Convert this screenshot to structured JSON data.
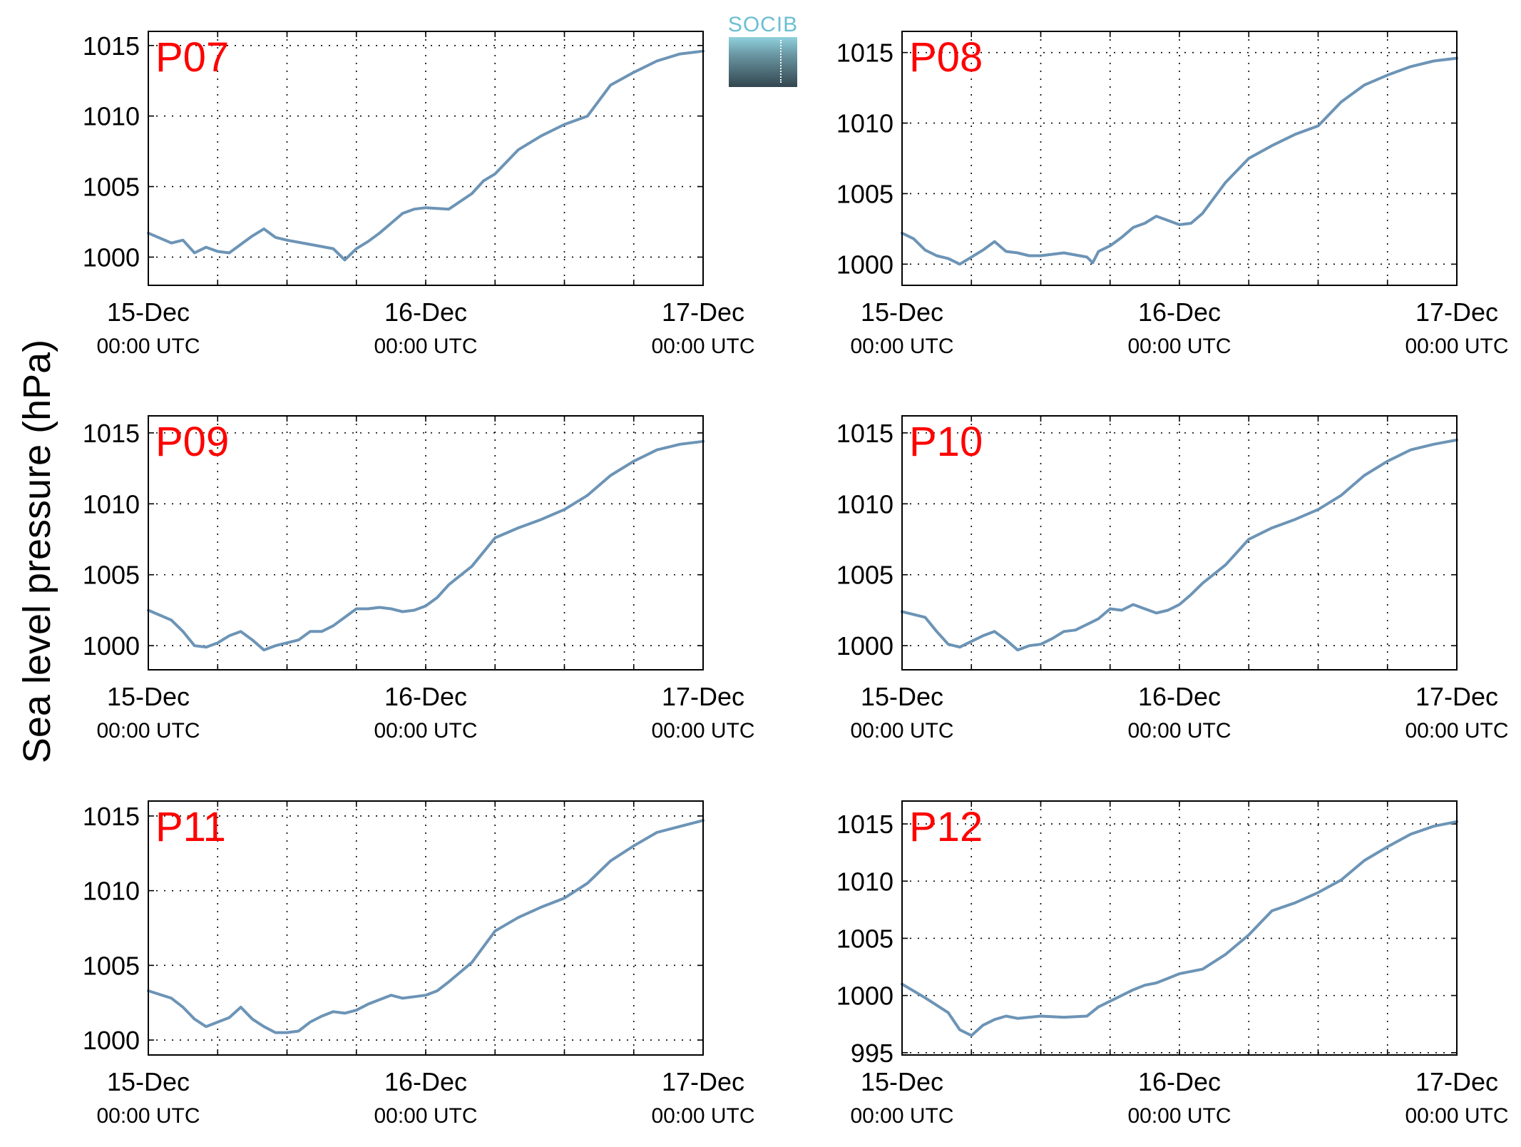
{
  "figure": {
    "ylabel": "Sea level pressure (hPa)",
    "logo_text": "SOCIB"
  },
  "colors": {
    "series": "#6c94b6",
    "station_label": "#ff0000",
    "axis": "#000000"
  },
  "chart_data": [
    {
      "type": "line",
      "title": "P07",
      "x_ticks": [
        {
          "date": "15-Dec",
          "time": "00:00 UTC"
        },
        {
          "date": "16-Dec",
          "time": "00:00 UTC"
        },
        {
          "date": "17-Dec",
          "time": "00:00 UTC"
        }
      ],
      "xlim": [
        "2014-12-15 00:00",
        "2014-12-17 00:00"
      ],
      "ylim": [
        998,
        1016
      ],
      "yticks": [
        1000,
        1005,
        1010,
        1015
      ],
      "grid": true,
      "x_unit": "hours since 15-Dec 00:00 UTC",
      "x": [
        0,
        2,
        3,
        4,
        5,
        6,
        7,
        8,
        9,
        10,
        11,
        12,
        14,
        16,
        17,
        18,
        19,
        20,
        21,
        22,
        23,
        24,
        26,
        28,
        29,
        30,
        32,
        34,
        36,
        38,
        40,
        42,
        44,
        46,
        48
      ],
      "values": [
        1001.7,
        1001.0,
        1001.2,
        1000.3,
        1000.7,
        1000.4,
        1000.3,
        1000.9,
        1001.5,
        1002.0,
        1001.4,
        1001.2,
        1000.9,
        1000.6,
        999.8,
        1000.6,
        1001.1,
        1001.7,
        1002.4,
        1003.1,
        1003.4,
        1003.5,
        1003.4,
        1004.5,
        1005.4,
        1005.9,
        1007.6,
        1008.6,
        1009.4,
        1010.0,
        1012.2,
        1013.1,
        1013.9,
        1014.4,
        1014.6
      ]
    },
    {
      "type": "line",
      "title": "P08",
      "x_ticks": [
        {
          "date": "15-Dec",
          "time": "00:00 UTC"
        },
        {
          "date": "16-Dec",
          "time": "00:00 UTC"
        },
        {
          "date": "17-Dec",
          "time": "00:00 UTC"
        }
      ],
      "xlim": [
        "2014-12-15 00:00",
        "2014-12-17 00:00"
      ],
      "ylim": [
        998.5,
        1016.5
      ],
      "yticks": [
        1000,
        1005,
        1010,
        1015
      ],
      "grid": true,
      "x_unit": "hours since 15-Dec 00:00 UTC",
      "x": [
        0,
        1,
        2,
        3,
        4,
        5,
        6,
        7,
        8,
        9,
        10,
        11,
        12,
        14,
        16,
        16.5,
        17,
        18,
        19,
        20,
        21,
        22,
        23,
        24,
        25,
        26,
        28,
        30,
        32,
        34,
        36,
        38,
        40,
        42,
        44,
        46,
        48
      ],
      "values": [
        1002.2,
        1001.8,
        1001.0,
        1000.6,
        1000.4,
        1000.0,
        1000.5,
        1001.0,
        1001.6,
        1000.9,
        1000.8,
        1000.6,
        1000.6,
        1000.8,
        1000.5,
        1000.1,
        1000.9,
        1001.3,
        1001.9,
        1002.6,
        1002.9,
        1003.4,
        1003.1,
        1002.8,
        1002.9,
        1003.6,
        1005.8,
        1007.5,
        1008.4,
        1009.2,
        1009.8,
        1011.5,
        1012.7,
        1013.4,
        1014.0,
        1014.4,
        1014.6
      ]
    },
    {
      "type": "line",
      "title": "P09",
      "x_ticks": [
        {
          "date": "15-Dec",
          "time": "00:00 UTC"
        },
        {
          "date": "16-Dec",
          "time": "00:00 UTC"
        },
        {
          "date": "17-Dec",
          "time": "00:00 UTC"
        }
      ],
      "xlim": [
        "2014-12-15 00:00",
        "2014-12-17 00:00"
      ],
      "ylim": [
        998.3,
        1016.2
      ],
      "yticks": [
        1000,
        1005,
        1010,
        1015
      ],
      "grid": true,
      "x_unit": "hours since 15-Dec 00:00 UTC",
      "x": [
        0,
        2,
        3,
        4,
        5,
        6,
        7,
        8,
        9,
        10,
        11,
        12,
        13,
        14,
        15,
        16,
        17,
        18,
        19,
        20,
        21,
        22,
        23,
        24,
        25,
        26,
        28,
        30,
        32,
        34,
        36,
        38,
        40,
        42,
        44,
        46,
        48
      ],
      "values": [
        1002.5,
        1001.8,
        1001.0,
        1000.0,
        999.9,
        1000.2,
        1000.7,
        1001.0,
        1000.4,
        999.7,
        1000.0,
        1000.2,
        1000.4,
        1001.0,
        1001.0,
        1001.4,
        1002.0,
        1002.6,
        1002.6,
        1002.7,
        1002.6,
        1002.4,
        1002.5,
        1002.8,
        1003.4,
        1004.3,
        1005.6,
        1007.6,
        1008.3,
        1008.9,
        1009.6,
        1010.6,
        1012.0,
        1013.0,
        1013.8,
        1014.2,
        1014.4
      ]
    },
    {
      "type": "line",
      "title": "P10",
      "x_ticks": [
        {
          "date": "15-Dec",
          "time": "00:00 UTC"
        },
        {
          "date": "16-Dec",
          "time": "00:00 UTC"
        },
        {
          "date": "17-Dec",
          "time": "00:00 UTC"
        }
      ],
      "xlim": [
        "2014-12-15 00:00",
        "2014-12-17 00:00"
      ],
      "ylim": [
        998.3,
        1016.2
      ],
      "yticks": [
        1000,
        1005,
        1010,
        1015
      ],
      "grid": true,
      "x_unit": "hours since 15-Dec 00:00 UTC",
      "x": [
        0,
        2,
        3,
        4,
        5,
        6,
        7,
        8,
        9,
        10,
        11,
        12,
        13,
        14,
        15,
        16,
        17,
        18,
        19,
        20,
        21,
        22,
        23,
        24,
        25,
        26,
        28,
        30,
        32,
        34,
        36,
        38,
        40,
        42,
        44,
        46,
        48
      ],
      "values": [
        1002.4,
        1002.0,
        1001.0,
        1000.1,
        999.9,
        1000.3,
        1000.7,
        1001.0,
        1000.4,
        999.7,
        1000.0,
        1000.1,
        1000.5,
        1001.0,
        1001.1,
        1001.5,
        1001.9,
        1002.6,
        1002.5,
        1002.9,
        1002.6,
        1002.3,
        1002.5,
        1002.9,
        1003.6,
        1004.4,
        1005.7,
        1007.5,
        1008.3,
        1008.9,
        1009.6,
        1010.6,
        1012.0,
        1013.0,
        1013.8,
        1014.2,
        1014.5
      ]
    },
    {
      "type": "line",
      "title": "P11",
      "x_ticks": [
        {
          "date": "15-Dec",
          "time": "00:00 UTC"
        },
        {
          "date": "16-Dec",
          "time": "00:00 UTC"
        },
        {
          "date": "17-Dec",
          "time": "00:00 UTC"
        }
      ],
      "xlim": [
        "2014-12-15 00:00",
        "2014-12-17 00:00"
      ],
      "ylim": [
        999,
        1016
      ],
      "yticks": [
        1000,
        1005,
        1010,
        1015
      ],
      "grid": true,
      "x_unit": "hours since 15-Dec 00:00 UTC",
      "x": [
        0,
        2,
        3,
        4,
        5,
        6,
        7,
        8,
        9,
        10,
        11,
        12,
        13,
        14,
        15,
        16,
        17,
        18,
        19,
        20,
        21,
        22,
        23,
        24,
        25,
        26,
        28,
        30,
        32,
        34,
        36,
        38,
        40,
        42,
        44,
        46,
        48
      ],
      "values": [
        1003.3,
        1002.8,
        1002.2,
        1001.4,
        1000.9,
        1001.2,
        1001.5,
        1002.2,
        1001.4,
        1000.9,
        1000.5,
        1000.5,
        1000.6,
        1001.2,
        1001.6,
        1001.9,
        1001.8,
        1002.0,
        1002.4,
        1002.7,
        1003.0,
        1002.8,
        1002.9,
        1003.0,
        1003.3,
        1003.9,
        1005.2,
        1007.3,
        1008.2,
        1008.9,
        1009.5,
        1010.5,
        1012.0,
        1013.0,
        1013.9,
        1014.3,
        1014.7
      ]
    },
    {
      "type": "line",
      "title": "P12",
      "x_ticks": [
        {
          "date": "15-Dec",
          "time": "00:00 UTC"
        },
        {
          "date": "16-Dec",
          "time": "00:00 UTC"
        },
        {
          "date": "17-Dec",
          "time": "00:00 UTC"
        }
      ],
      "xlim": [
        "2014-12-15 00:00",
        "2014-12-17 00:00"
      ],
      "ylim": [
        994.8,
        1017
      ],
      "yticks": [
        995,
        1000,
        1005,
        1010,
        1015
      ],
      "grid": true,
      "x_unit": "hours since 15-Dec 00:00 UTC",
      "x": [
        0,
        2,
        4,
        5,
        6,
        7,
        8,
        9,
        10,
        12,
        14,
        16,
        17,
        18,
        19,
        20,
        21,
        22,
        23,
        24,
        26,
        28,
        30,
        32,
        34,
        36,
        38,
        40,
        42,
        44,
        46,
        48
      ],
      "values": [
        1001.0,
        999.8,
        998.5,
        997.0,
        996.5,
        997.4,
        997.9,
        998.2,
        998.0,
        998.2,
        998.1,
        998.2,
        999.0,
        999.5,
        1000.0,
        1000.5,
        1000.9,
        1001.1,
        1001.5,
        1001.9,
        1002.3,
        1003.6,
        1005.3,
        1007.4,
        1008.1,
        1009.0,
        1010.1,
        1011.8,
        1013.0,
        1014.1,
        1014.8,
        1015.2
      ]
    }
  ]
}
